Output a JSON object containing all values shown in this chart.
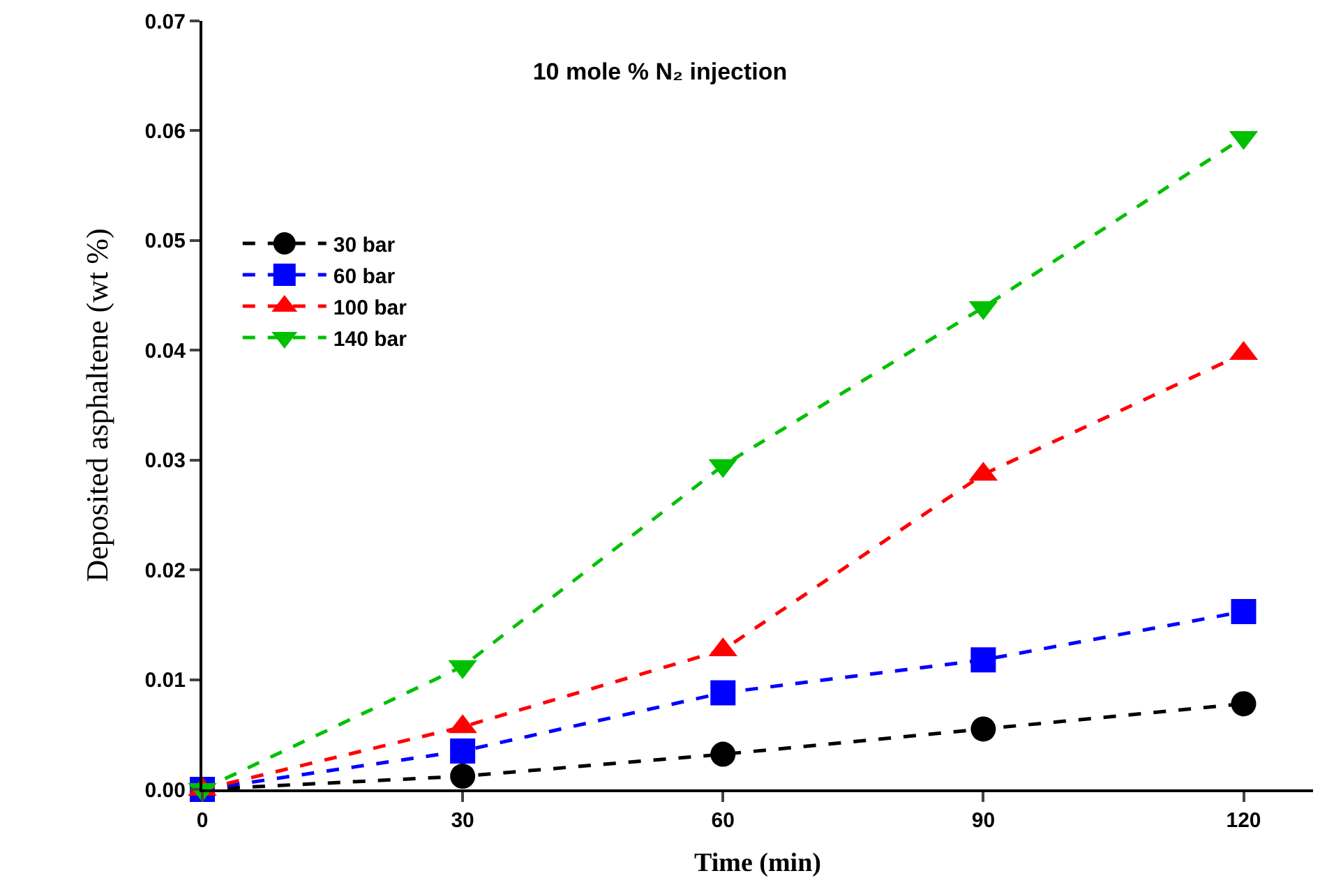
{
  "chart_data": {
    "type": "line",
    "title": "10 mole % N₂ injection",
    "xlabel": "Time (min)",
    "ylabel": "Deposited asphaltene (wt %)",
    "x": [
      0,
      30,
      60,
      90,
      120
    ],
    "series": [
      {
        "name": "30 bar",
        "color": "#000000",
        "marker": "circle",
        "values": [
          0,
          0.0012,
          0.0032,
          0.0055,
          0.0078
        ]
      },
      {
        "name": "60 bar",
        "color": "#0000ff",
        "marker": "square",
        "values": [
          0,
          0.0035,
          0.0088,
          0.0118,
          0.0162
        ]
      },
      {
        "name": "100 bar",
        "color": "#ff0000",
        "marker": "triangle",
        "values": [
          0,
          0.0057,
          0.0127,
          0.0287,
          0.0397
        ]
      },
      {
        "name": "140 bar",
        "color": "#00c000",
        "marker": "triangle-down",
        "values": [
          0,
          0.0112,
          0.0295,
          0.0439,
          0.0594
        ]
      }
    ],
    "xlim": [
      0,
      128
    ],
    "xticks": [
      0,
      30,
      60,
      90,
      120
    ],
    "ylim": [
      0,
      0.07
    ],
    "yticks": [
      {
        "value": 0,
        "label": "0.00"
      },
      {
        "value": 0.01,
        "label": "0.01"
      },
      {
        "value": 0.02,
        "label": "0.02"
      },
      {
        "value": 0.03,
        "label": "0.03"
      },
      {
        "value": 0.04,
        "label": "0.04"
      },
      {
        "value": 0.05,
        "label": "0.05"
      },
      {
        "value": 0.06,
        "label": "0.06"
      },
      {
        "value": 0.07,
        "label": "0.07"
      }
    ],
    "line_style": "dashed",
    "grid": false,
    "legend": "top left"
  }
}
